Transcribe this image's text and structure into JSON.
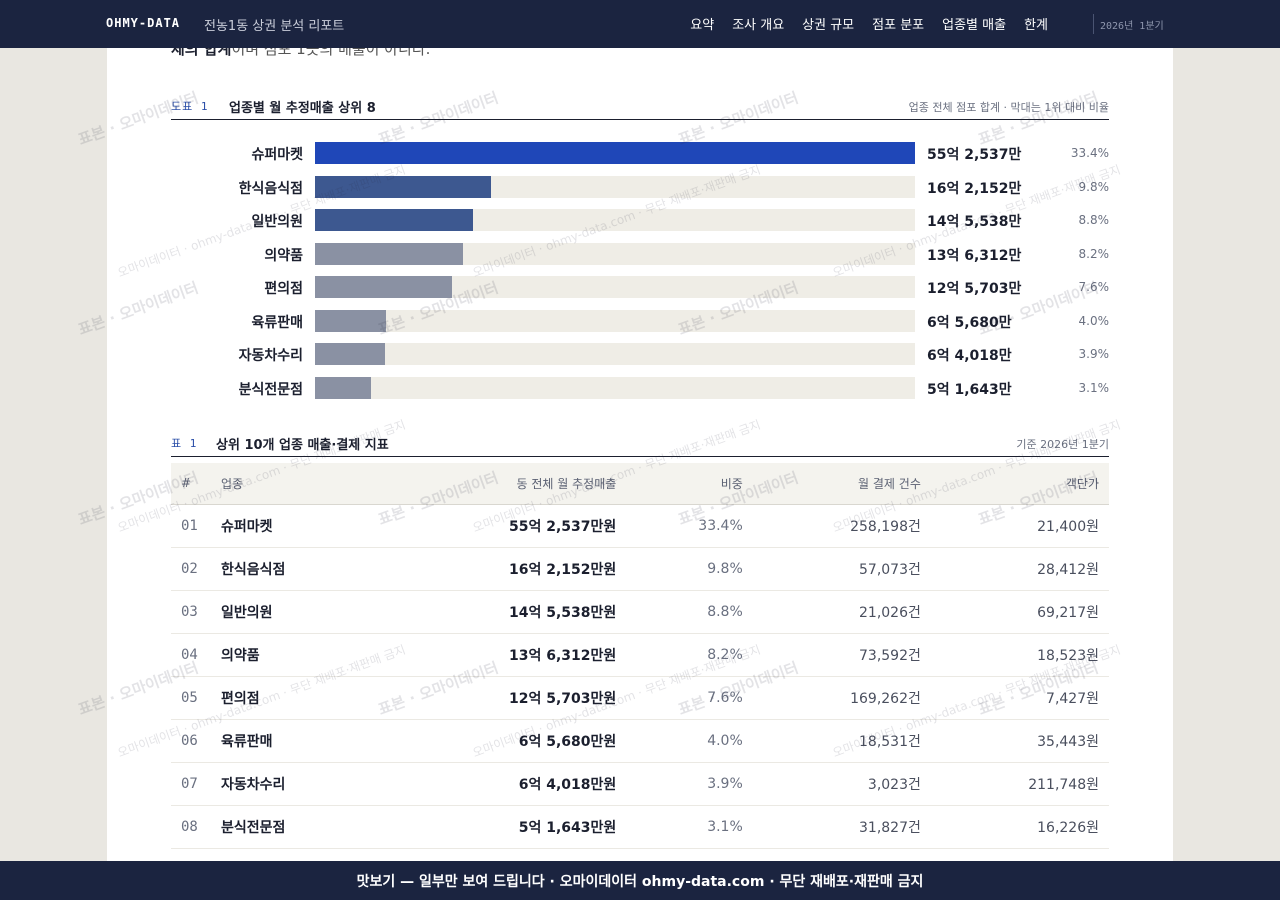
{
  "header": {
    "brand": "OHMY-DATA",
    "doc_title": "전농1동 상권 분석 리포트",
    "nav": [
      "요약",
      "조사 개요",
      "상권 규모",
      "점포 분포",
      "업종별 매출",
      "한계"
    ],
    "period": "2026년 1분기"
  },
  "intro_cut": {
    "bold": "체의 합계",
    "rest": "이며 점포 1곳의 매출이 아니다."
  },
  "figure": {
    "tag": "도표 1",
    "title": "업종별 월 추정매출 상위 8",
    "note": "업종 전체 점포 합계 · 막대는 1위 대비 비율",
    "colors": {
      "top": "#1f47b8",
      "mid": "#3d5890",
      "low": "#8a91a3",
      "track": "#efede6"
    }
  },
  "chart_data": {
    "type": "bar",
    "orientation": "horizontal",
    "categories": [
      "슈퍼마켓",
      "한식음식점",
      "일반의원",
      "의약품",
      "편의점",
      "육류판매",
      "자동차수리",
      "분식전문점"
    ],
    "value_labels": [
      "55억 2,537만",
      "16억 2,152만",
      "14억 5,538만",
      "13억 6,312만",
      "12억 5,703만",
      "6억 5,680만",
      "6억 4,018만",
      "5억 1,643만"
    ],
    "share_labels": [
      "33.4%",
      "9.8%",
      "8.8%",
      "8.2%",
      "7.6%",
      "4.0%",
      "3.9%",
      "3.1%"
    ],
    "values": [
      552537,
      162152,
      145538,
      136312,
      125703,
      65680,
      64018,
      51643
    ],
    "tones": [
      "top",
      "mid",
      "mid",
      "low",
      "low",
      "low",
      "low",
      "low"
    ]
  },
  "table": {
    "tag": "표 1",
    "title": "상위 10개 업종 매출·결제 지표",
    "note": "기준 2026년 1분기",
    "headers": [
      "#",
      "업종",
      "동 전체 월 추정매출",
      "비중",
      "월 결제 건수",
      "객단가"
    ],
    "rows": [
      [
        "01",
        "슈퍼마켓",
        "55억 2,537만원",
        "33.4%",
        "258,198건",
        "21,400원"
      ],
      [
        "02",
        "한식음식점",
        "16억 2,152만원",
        "9.8%",
        "57,073건",
        "28,412원"
      ],
      [
        "03",
        "일반의원",
        "14억 5,538만원",
        "8.8%",
        "21,026건",
        "69,217원"
      ],
      [
        "04",
        "의약품",
        "13억 6,312만원",
        "8.2%",
        "73,592건",
        "18,523원"
      ],
      [
        "05",
        "편의점",
        "12억 5,703만원",
        "7.6%",
        "169,262건",
        "7,427원"
      ],
      [
        "06",
        "육류판매",
        "6억 5,680만원",
        "4.0%",
        "18,531건",
        "35,443원"
      ],
      [
        "07",
        "자동차수리",
        "6억 4,018만원",
        "3.9%",
        "3,023건",
        "211,748원"
      ],
      [
        "08",
        "분식전문점",
        "5억 1,643만원",
        "3.1%",
        "31,827건",
        "16,226원"
      ]
    ]
  },
  "watermark": {
    "main": "표본 · 오마이데이터",
    "secondary": "오마이데이터 · ohmy-data.com · 무단 재배포·재판매 금지"
  },
  "footer": "맛보기 — 일부만 보여 드립니다 · 오마이데이터 ohmy-data.com · 무단 재배포·재판매 금지"
}
